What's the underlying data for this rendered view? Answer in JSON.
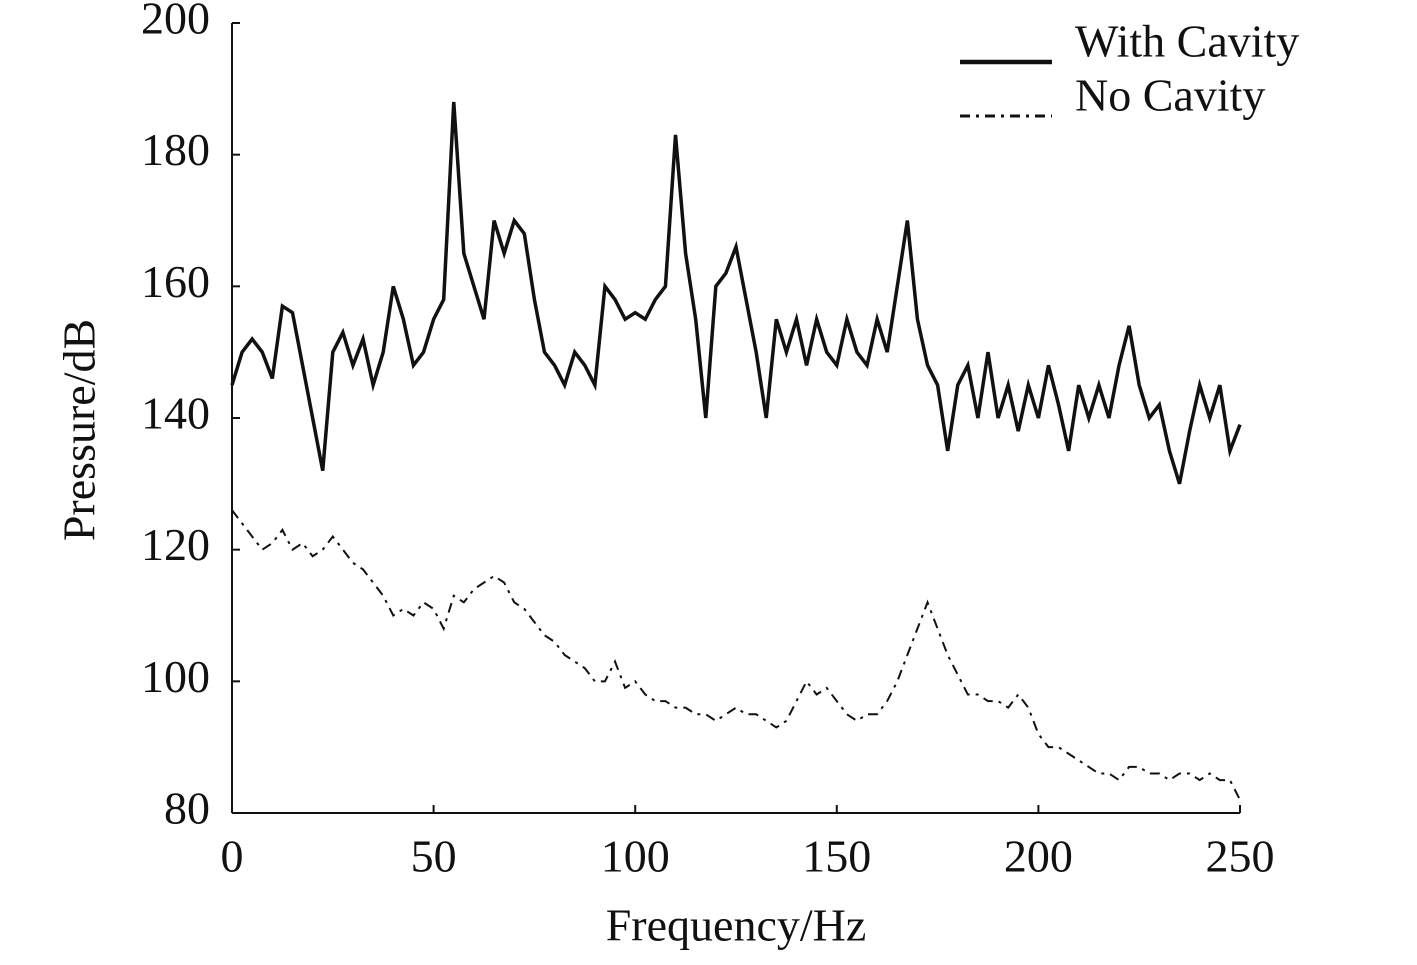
{
  "chart_data": {
    "type": "line",
    "xlabel": "Frequency/Hz",
    "ylabel": "Pressure/dB",
    "x": [
      0,
      2.5,
      5,
      7.5,
      10,
      12.5,
      15,
      17.5,
      20,
      22.5,
      25,
      27.5,
      30,
      32.5,
      35,
      37.5,
      40,
      42.5,
      45,
      47.5,
      50,
      52.5,
      55,
      57.5,
      60,
      62.5,
      65,
      67.5,
      70,
      72.5,
      75,
      77.5,
      80,
      82.5,
      85,
      87.5,
      90,
      92.5,
      95,
      97.5,
      100,
      102.5,
      105,
      107.5,
      110,
      112.5,
      115,
      117.5,
      120,
      122.5,
      125,
      127.5,
      130,
      132.5,
      135,
      137.5,
      140,
      142.5,
      145,
      147.5,
      150,
      152.5,
      155,
      157.5,
      160,
      162.5,
      165,
      167.5,
      170,
      172.5,
      175,
      177.5,
      180,
      182.5,
      185,
      187.5,
      190,
      192.5,
      195,
      197.5,
      200,
      202.5,
      205,
      207.5,
      210,
      212.5,
      215,
      217.5,
      220,
      222.5,
      225,
      227.5,
      230,
      232.5,
      235,
      237.5,
      240,
      242.5,
      245,
      247.5,
      250
    ],
    "series": [
      {
        "name": "With Cavity",
        "color": "#111111",
        "line_style": "solid",
        "values": [
          145,
          150,
          152,
          150,
          146,
          157,
          156,
          148,
          140,
          132,
          150,
          153,
          148,
          152,
          145,
          150,
          160,
          155,
          148,
          150,
          155,
          158,
          188,
          165,
          160,
          155,
          170,
          165,
          170,
          168,
          158,
          150,
          148,
          145,
          150,
          148,
          145,
          160,
          158,
          155,
          156,
          155,
          158,
          160,
          183,
          165,
          155,
          140,
          160,
          162,
          166,
          158,
          150,
          140,
          155,
          150,
          155,
          148,
          155,
          150,
          148,
          155,
          150,
          148,
          155,
          150,
          160,
          170,
          155,
          148,
          145,
          135,
          145,
          148,
          140,
          150,
          140,
          145,
          138,
          145,
          140,
          148,
          142,
          135,
          145,
          140,
          145,
          140,
          148,
          154,
          145,
          140,
          142,
          135,
          130,
          138,
          145,
          140,
          145,
          135,
          139
        ]
      },
      {
        "name": "No Cavity",
        "color": "#111111",
        "line_style": "dashdot",
        "values": [
          126,
          124,
          122,
          120,
          121,
          123,
          120,
          121,
          119,
          120,
          122,
          120,
          118,
          117,
          115,
          113,
          110,
          111,
          110,
          112,
          111,
          108,
          113,
          112,
          114,
          115,
          116,
          115,
          112,
          111,
          109,
          107,
          106,
          104,
          103,
          102,
          100,
          100,
          103,
          99,
          100,
          98,
          97,
          97,
          96,
          96,
          95,
          95,
          94,
          95,
          96,
          95,
          95,
          94,
          93,
          94,
          97,
          100,
          98,
          99,
          97,
          95,
          94,
          95,
          95,
          97,
          100,
          104,
          108,
          112,
          108,
          104,
          101,
          98,
          98,
          97,
          97,
          96,
          98,
          96,
          92,
          90,
          90,
          89,
          88,
          87,
          86,
          86,
          85,
          87,
          87,
          86,
          86,
          85,
          86,
          86,
          85,
          86,
          85,
          85,
          82
        ]
      }
    ],
    "xlim": [
      0,
      250
    ],
    "xticks": [
      0,
      50,
      100,
      150,
      200,
      250
    ],
    "ylim": [
      80,
      200
    ],
    "yticks": [
      80,
      100,
      120,
      140,
      160,
      180,
      200
    ],
    "legend": "upper right"
  }
}
